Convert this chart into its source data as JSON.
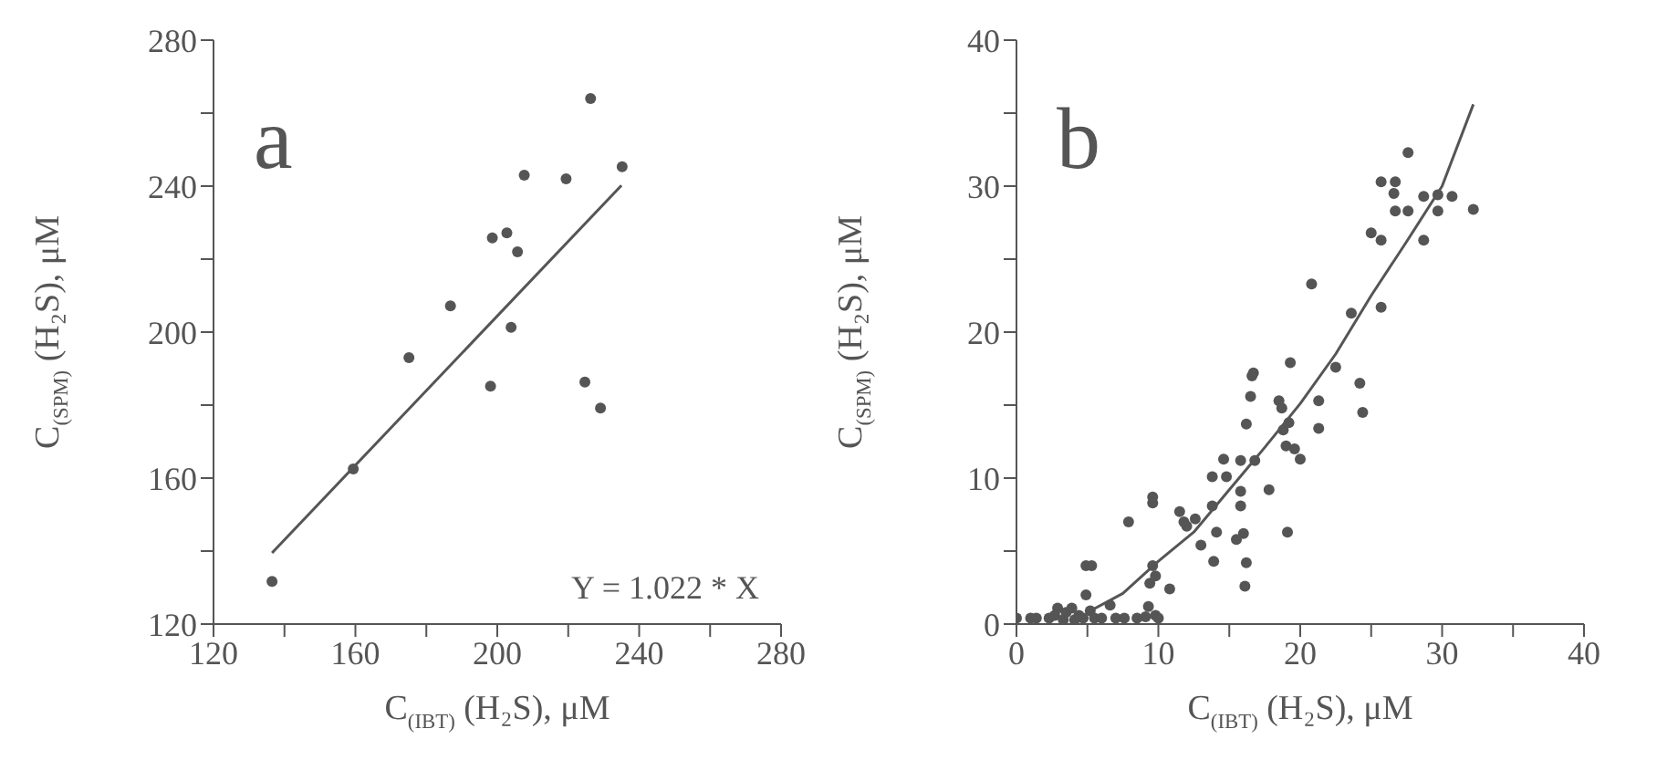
{
  "chart_data": [
    {
      "type": "scatter",
      "xlabel": "C$_{(IBT)}$ (H₂S), μM",
      "ylabel": "C$_{(SPM)}$ (H₂S), μM",
      "annotations": [
        "a",
        "Y = 1.022 * X"
      ],
      "marker": "circle",
      "grid": false,
      "legend": false,
      "xlim": [
        120,
        280
      ],
      "xticks": [
        120,
        {
          "value": 140,
          "label": null
        },
        160,
        {
          "value": 180,
          "label": null
        },
        200,
        {
          "value": 220,
          "label": null
        },
        240,
        {
          "value": 260,
          "label": null
        },
        280
      ],
      "ylim": [
        120,
        280
      ],
      "yticks": [
        120,
        {
          "value": 140,
          "label": null
        },
        160,
        {
          "value": 180,
          "label": null
        },
        200,
        {
          "value": 220,
          "label": null
        },
        240,
        {
          "value": 260,
          "label": null
        },
        280
      ],
      "series": [
        {
          "type": "scatter",
          "color": "#555555",
          "x": [
            136.5,
            159.4,
            175.1,
            186.8,
            198.1,
            198.6,
            202.7,
            205.7,
            203.9,
            207.6,
            219.4,
            226.3,
            224.7,
            229.1,
            235.2
          ],
          "values": [
            131.7,
            162.5,
            193,
            207.2,
            185.2,
            225.8,
            227.2,
            222,
            201.3,
            243,
            242,
            264,
            186.3,
            179.2,
            245.3
          ]
        },
        {
          "type": "line",
          "color": "#555555",
          "marker": "none",
          "x": [
            136.5,
            235
          ],
          "values": [
            139.5,
            240.2
          ]
        }
      ]
    },
    {
      "type": "scatter",
      "xlabel": "C$_{(IBT)}$ (H₂S), μM",
      "ylabel": "C$_{(SPM)}$ (H₂S), μM",
      "annotations": [
        "b"
      ],
      "marker": "circle",
      "grid": false,
      "legend": false,
      "xlim": [
        0,
        40
      ],
      "xticks": [
        0,
        {
          "value": 5,
          "label": null
        },
        10,
        {
          "value": 15,
          "label": null
        },
        20,
        {
          "value": 25,
          "label": null
        },
        30,
        {
          "value": 35,
          "label": null
        },
        40
      ],
      "ylim": [
        0,
        40
      ],
      "yticks": [
        0,
        {
          "value": 5,
          "label": null
        },
        10,
        {
          "value": 15,
          "label": null
        },
        20,
        {
          "value": 25,
          "label": null
        },
        30,
        {
          "value": 35,
          "label": null
        },
        40
      ],
      "series": [
        {
          "type": "scatter",
          "color": "#555555",
          "x": [
            0.0,
            1.0,
            1.4,
            2.3,
            2.7,
            2.9,
            3.3,
            3.5,
            3.9,
            4.1,
            4.4,
            4.7,
            4.9,
            4.9,
            5.3,
            5.2,
            5.5,
            6.0,
            6.6,
            7.0,
            7.6,
            7.9,
            8.5,
            9.1,
            9.3,
            9.6,
            9.6,
            9.4,
            9.6,
            9.8,
            9.8,
            10.0,
            10.8,
            11.5,
            11.8,
            12.0,
            12.6,
            13.0,
            13.8,
            13.8,
            13.9,
            14.1,
            14.6,
            14.8,
            15.5,
            15.8,
            15.8,
            15.8,
            16.0,
            16.2,
            16.2,
            16.1,
            16.5,
            16.6,
            16.7,
            16.8,
            17.8,
            18.5,
            18.7,
            18.8,
            19.0,
            19.1,
            19.3,
            19.6,
            20.0,
            19.2,
            20.8,
            21.3,
            21.3,
            22.5,
            23.6,
            24.2,
            24.4,
            25.0,
            25.7,
            25.7,
            25.7,
            26.7,
            26.6,
            26.7,
            27.6,
            27.6,
            28.7,
            28.7,
            29.7,
            29.7,
            30.7,
            32.2
          ],
          "values": [
            0.4,
            0.4,
            0.4,
            0.4,
            0.6,
            1.1,
            0.3,
            0.8,
            1.1,
            0.3,
            0.6,
            0.4,
            2.0,
            4.0,
            4.0,
            0.9,
            0.4,
            0.4,
            1.3,
            0.4,
            0.4,
            7.0,
            0.4,
            0.5,
            1.2,
            8.7,
            8.3,
            2.8,
            4.0,
            3.3,
            0.6,
            0.4,
            2.4,
            7.7,
            7.0,
            6.7,
            7.2,
            5.4,
            10.1,
            8.1,
            4.3,
            6.3,
            11.3,
            10.1,
            5.8,
            9.1,
            8.1,
            11.2,
            6.2,
            13.7,
            4.2,
            2.6,
            15.6,
            17.0,
            17.2,
            11.2,
            9.2,
            15.3,
            14.8,
            13.3,
            12.2,
            6.3,
            17.9,
            12.0,
            11.3,
            13.8,
            23.3,
            15.3,
            13.4,
            17.6,
            21.3,
            16.5,
            14.5,
            26.8,
            26.3,
            21.7,
            30.3,
            30.3,
            29.5,
            28.3,
            32.3,
            28.3,
            29.3,
            26.3,
            29.4,
            28.3,
            29.3,
            28.4
          ]
        },
        {
          "type": "line",
          "color": "#555555",
          "marker": "none",
          "x": [
            5,
            7.5,
            10,
            12.5,
            15,
            17.5,
            20,
            22.5,
            25,
            27.5,
            30,
            32.2
          ],
          "values": [
            0.8,
            2.1,
            4.3,
            6.3,
            9.2,
            12.1,
            15.1,
            18.5,
            22.5,
            26.2,
            30,
            35.6
          ]
        }
      ]
    }
  ]
}
